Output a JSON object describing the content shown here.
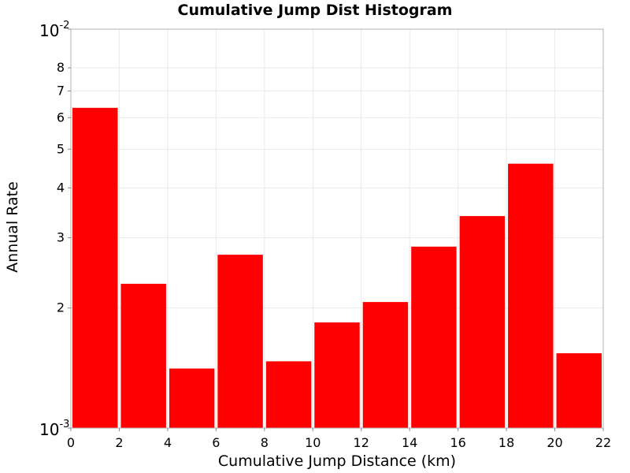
{
  "chart_data": {
    "type": "bar",
    "title": "Cumulative Jump Dist Histogram",
    "xlabel": "Cumulative Jump Distance (km)",
    "ylabel": "Annual Rate",
    "y_scale": "log",
    "xlim": [
      0,
      22
    ],
    "ylim": [
      0.001,
      0.01
    ],
    "grid": true,
    "bar_color": "#ff0000",
    "x_ticks": [
      0,
      2,
      4,
      6,
      8,
      10,
      12,
      14,
      16,
      18,
      20,
      22
    ],
    "y_minor_tick_labels": [
      {
        "value": 0.002,
        "label": "2"
      },
      {
        "value": 0.003,
        "label": "3"
      },
      {
        "value": 0.004,
        "label": "4"
      },
      {
        "value": 0.005,
        "label": "5"
      },
      {
        "value": 0.006,
        "label": "6"
      },
      {
        "value": 0.007,
        "label": "7"
      },
      {
        "value": 0.008,
        "label": "8"
      }
    ],
    "y_major_tick_labels": [
      {
        "value": 0.001,
        "base": "10",
        "exp": "-3"
      },
      {
        "value": 0.01,
        "base": "10",
        "exp": "-2"
      }
    ],
    "bins": [
      {
        "x0": 0,
        "x1": 2,
        "value": 0.00635
      },
      {
        "x0": 2,
        "x1": 4,
        "value": 0.0023
      },
      {
        "x0": 4,
        "x1": 6,
        "value": 0.00141
      },
      {
        "x0": 6,
        "x1": 8,
        "value": 0.00272
      },
      {
        "x0": 8,
        "x1": 10,
        "value": 0.00147
      },
      {
        "x0": 10,
        "x1": 12,
        "value": 0.00184
      },
      {
        "x0": 12,
        "x1": 14,
        "value": 0.00207
      },
      {
        "x0": 14,
        "x1": 16,
        "value": 0.00285
      },
      {
        "x0": 16,
        "x1": 18,
        "value": 0.0034
      },
      {
        "x0": 18,
        "x1": 20,
        "value": 0.0046
      },
      {
        "x0": 20,
        "x1": 22,
        "value": 0.00154
      }
    ]
  }
}
